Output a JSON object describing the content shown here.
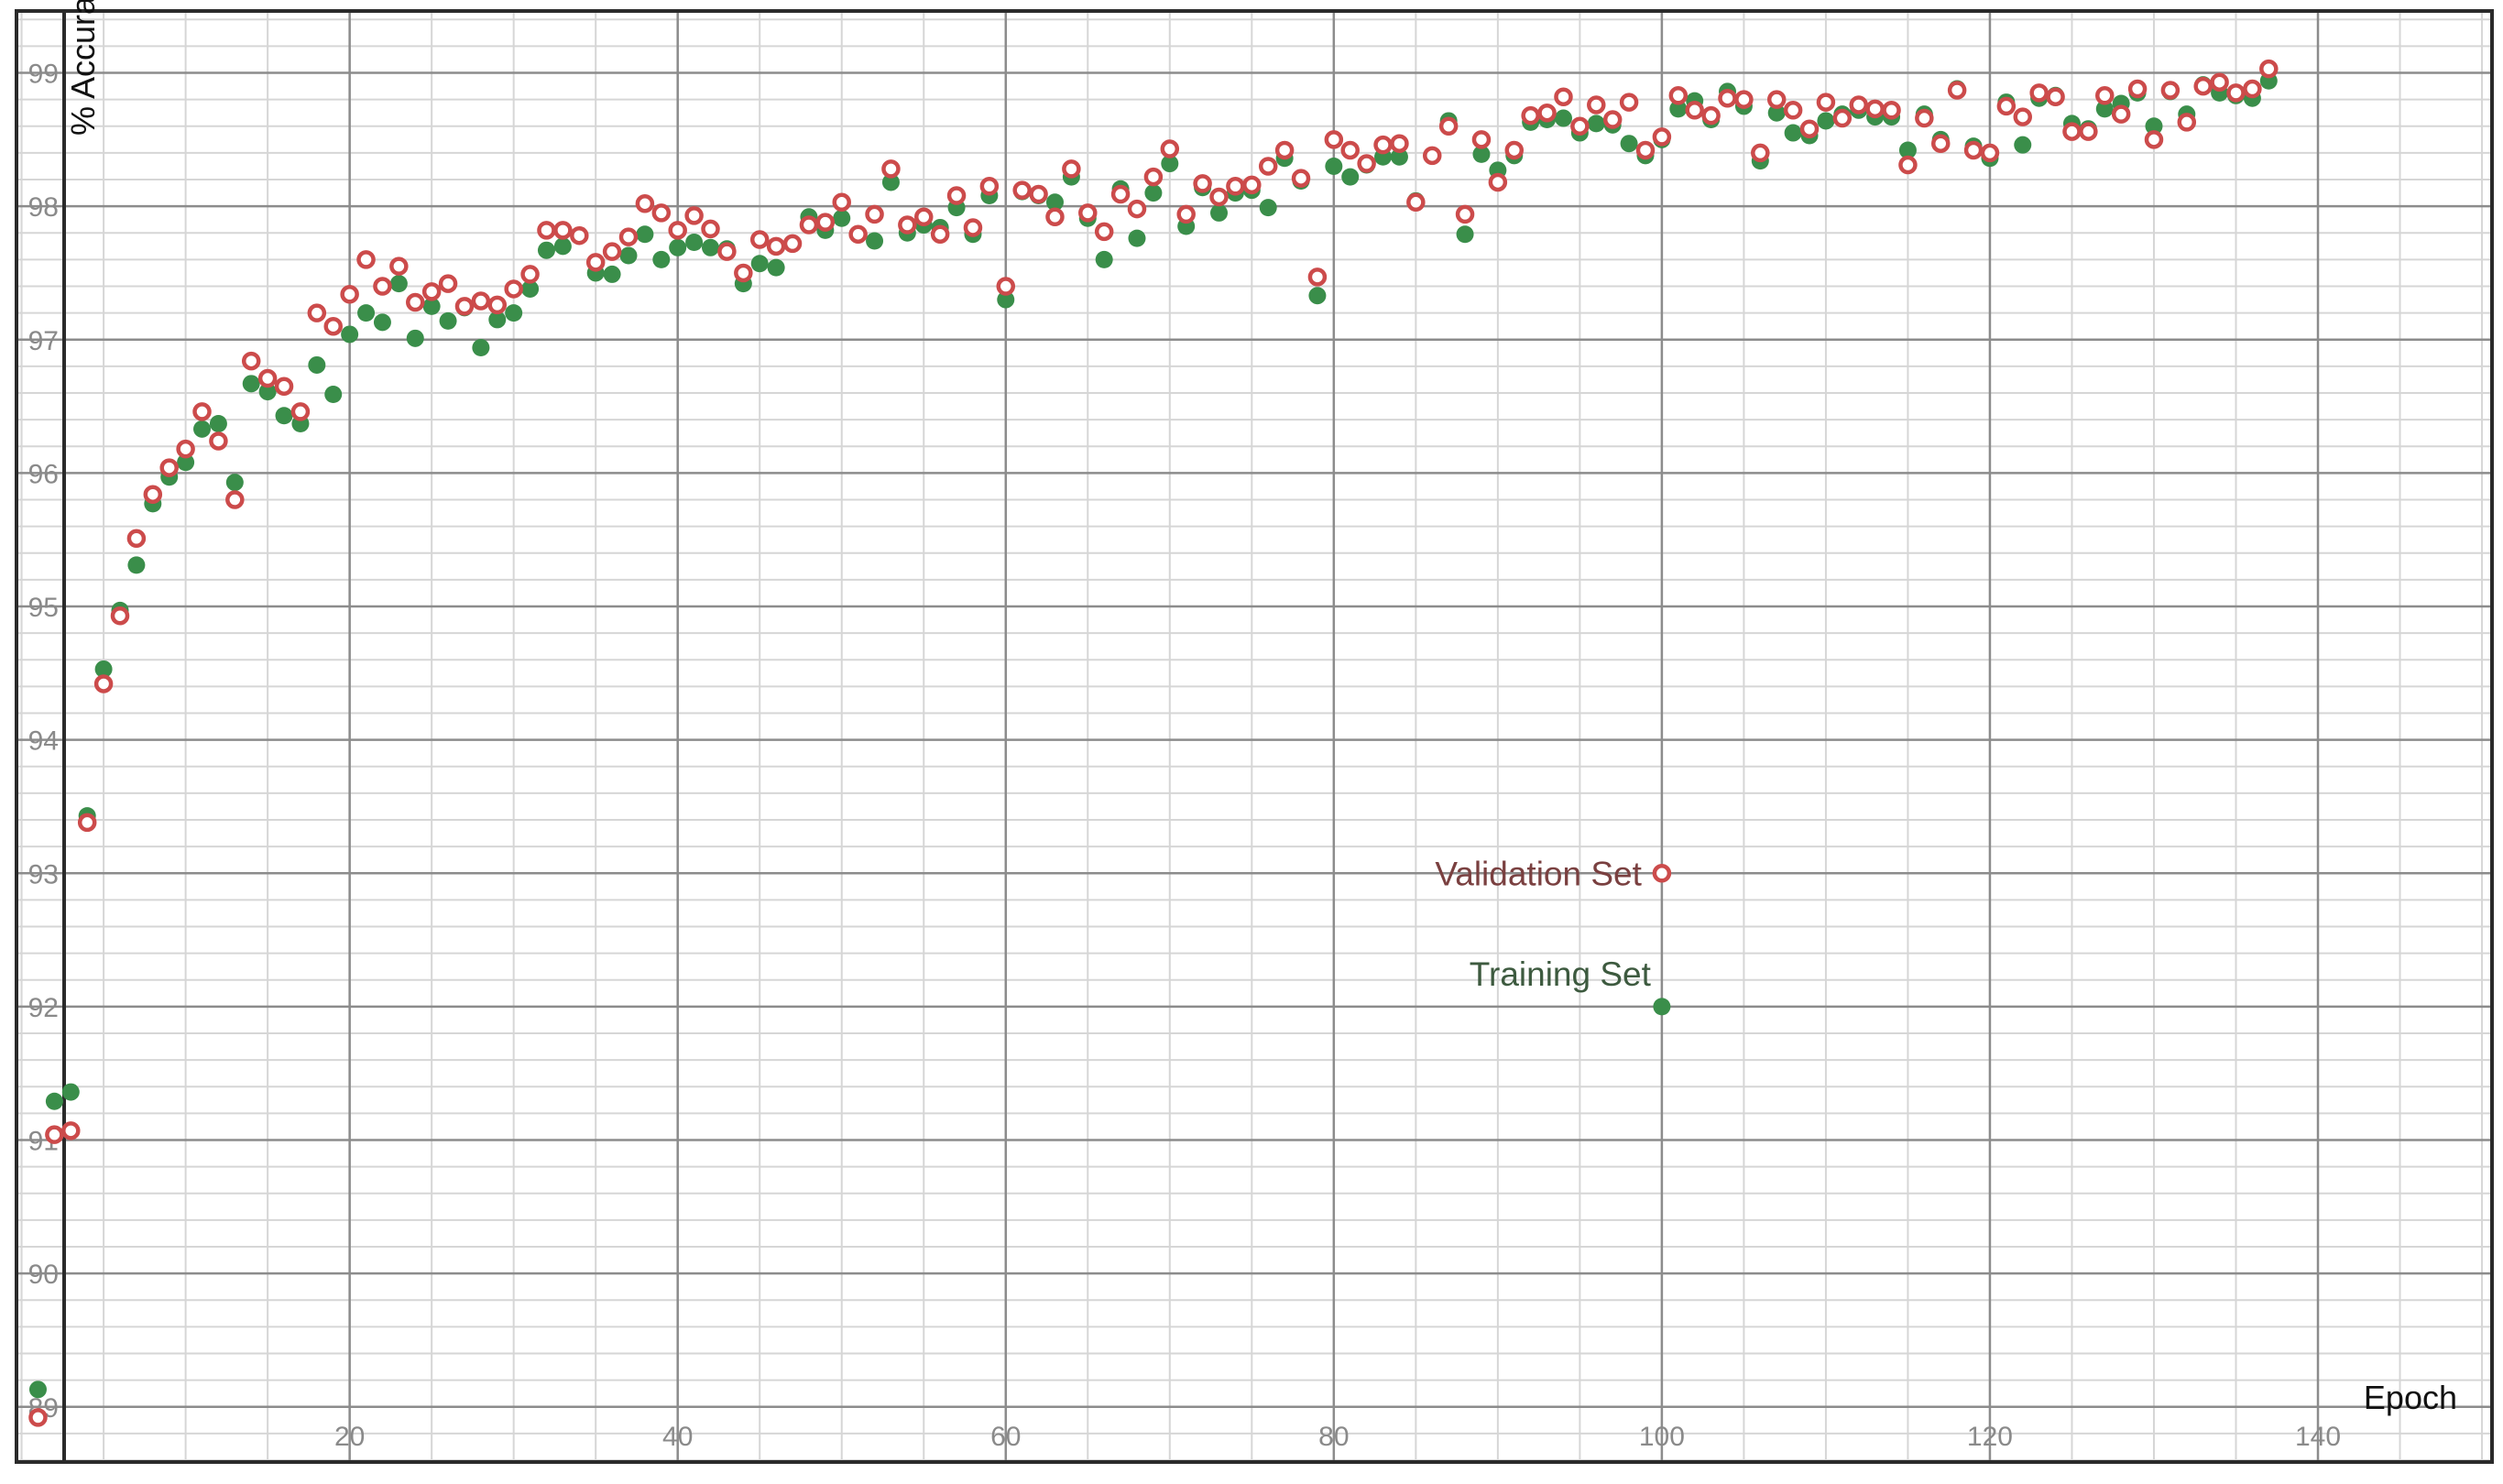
{
  "colors": {
    "validation": "#cc4b4b",
    "training": "#3a8e4a",
    "validation_text": "#7a4040",
    "training_text": "#3d5a3f",
    "grid_major": "#8c8c8c",
    "grid_minor": "#d6d6d6",
    "frame": "#2a2a2a"
  },
  "chart_data": {
    "type": "scatter",
    "xlabel": "Epoch",
    "ylabel": "% Accuracy",
    "xlim": [
      -0.2,
      150.5
    ],
    "ylim": [
      88.6,
      99.45
    ],
    "x_major_ticks": [
      20,
      40,
      60,
      80,
      100,
      120,
      140
    ],
    "x_minor_step": 5,
    "y_major_ticks": [
      89,
      90,
      91,
      92,
      93,
      94,
      95,
      96,
      97,
      98,
      99
    ],
    "y_minor_step": 0.2,
    "grid": true,
    "legend": [
      {
        "name": "Validation Set",
        "series": "validation",
        "marker": "hollow-circle",
        "anchor": [
          100,
          93
        ]
      },
      {
        "name": "Training Set",
        "series": "training",
        "marker": "filled-circle",
        "anchor": [
          100,
          92
        ]
      }
    ],
    "epochs": [
      1,
      2,
      3,
      4,
      5,
      6,
      7,
      8,
      9,
      10,
      11,
      12,
      13,
      14,
      15,
      16,
      17,
      18,
      19,
      20,
      21,
      22,
      23,
      24,
      25,
      26,
      27,
      28,
      29,
      30,
      31,
      32,
      33,
      34,
      35,
      36,
      37,
      38,
      39,
      40,
      41,
      42,
      43,
      44,
      45,
      46,
      47,
      48,
      49,
      50,
      51,
      52,
      53,
      54,
      55,
      56,
      57,
      58,
      59,
      60,
      61,
      62,
      63,
      64,
      65,
      66,
      67,
      68,
      69,
      70,
      71,
      72,
      73,
      74,
      75,
      76,
      77,
      78,
      79,
      80,
      81,
      82,
      83,
      84,
      85,
      86,
      87,
      88,
      89,
      90,
      91,
      92,
      93,
      94,
      95,
      96,
      97,
      98,
      99,
      100,
      101,
      102,
      103,
      104,
      105,
      106,
      107,
      108,
      109,
      110,
      111,
      112,
      113,
      114,
      115,
      116,
      117,
      118,
      119,
      120,
      121,
      122,
      123,
      124,
      125,
      126,
      127,
      128,
      129,
      130,
      131,
      132,
      133,
      134,
      135,
      136,
      137
    ],
    "series": [
      {
        "name": "Validation Set",
        "key": "validation",
        "values": [
          88.92,
          91.04,
          91.07,
          93.38,
          94.42,
          94.93,
          95.51,
          95.84,
          96.04,
          96.18,
          96.46,
          96.24,
          95.8,
          96.84,
          96.71,
          96.65,
          96.46,
          97.2,
          97.1,
          97.34,
          97.6,
          97.4,
          97.55,
          97.28,
          97.36,
          97.42,
          97.25,
          97.29,
          97.26,
          97.38,
          97.49,
          97.82,
          97.82,
          97.78,
          97.58,
          97.66,
          97.77,
          98.02,
          97.95,
          97.82,
          97.93,
          97.83,
          97.66,
          97.5,
          97.75,
          97.7,
          97.72,
          97.86,
          97.88,
          98.03,
          97.79,
          97.94,
          98.28,
          97.86,
          97.92,
          97.79,
          98.08,
          97.84,
          98.15,
          97.4,
          98.12,
          98.09,
          97.92,
          98.28,
          97.95,
          97.81,
          98.09,
          97.98,
          98.22,
          98.43,
          97.94,
          98.17,
          98.07,
          98.15,
          98.16,
          98.3,
          98.42,
          98.21,
          97.47,
          98.5,
          98.42,
          98.32,
          98.46,
          98.47,
          98.03,
          98.38,
          98.6,
          97.94,
          98.5,
          98.18,
          98.42,
          98.68,
          98.7,
          98.82,
          98.6,
          98.76,
          98.65,
          98.78,
          98.42,
          98.52,
          98.83,
          98.72,
          98.68,
          98.81,
          98.8,
          98.4,
          98.8,
          98.72,
          98.58,
          98.78,
          98.66,
          98.76,
          98.73,
          98.72,
          98.31,
          98.66,
          98.47,
          98.87,
          98.42,
          98.4,
          98.75,
          98.67,
          98.85,
          98.82,
          98.56,
          98.56,
          98.83,
          98.69,
          98.88,
          98.5,
          98.87,
          98.63,
          98.9,
          98.93,
          98.85,
          98.88,
          99.03
        ]
      },
      {
        "name": "Training Set",
        "key": "training",
        "values": [
          89.13,
          91.29,
          91.36,
          93.43,
          94.53,
          94.97,
          95.31,
          95.77,
          95.97,
          96.08,
          96.33,
          96.37,
          95.93,
          96.67,
          96.61,
          96.43,
          96.37,
          96.81,
          96.59,
          97.04,
          97.2,
          97.13,
          97.42,
          97.01,
          97.25,
          97.14,
          97.24,
          96.94,
          97.15,
          97.2,
          97.38,
          97.67,
          97.7,
          97.78,
          97.5,
          97.49,
          97.63,
          97.79,
          97.6,
          97.69,
          97.73,
          97.69,
          97.68,
          97.42,
          97.57,
          97.54,
          97.72,
          97.92,
          97.82,
          97.91,
          97.79,
          97.74,
          98.18,
          97.8,
          97.86,
          97.84,
          97.99,
          97.79,
          98.08,
          97.3,
          98.11,
          98.08,
          98.03,
          98.22,
          97.91,
          97.6,
          98.13,
          97.76,
          98.1,
          98.32,
          97.85,
          98.14,
          97.95,
          98.1,
          98.12,
          97.99,
          98.36,
          98.19,
          97.33,
          98.3,
          98.22,
          98.31,
          98.37,
          98.37,
          98.04,
          98.38,
          98.64,
          97.79,
          98.39,
          98.27,
          98.38,
          98.63,
          98.65,
          98.66,
          98.55,
          98.62,
          98.61,
          98.47,
          98.38,
          98.5,
          98.73,
          98.79,
          98.65,
          98.86,
          98.75,
          98.34,
          98.7,
          98.55,
          98.53,
          98.64,
          98.69,
          98.72,
          98.67,
          98.67,
          98.42,
          98.69,
          98.5,
          98.88,
          98.45,
          98.36,
          98.78,
          98.46,
          98.81,
          98.83,
          98.62,
          98.58,
          98.73,
          98.77,
          98.85,
          98.6,
          98.86,
          98.69,
          98.91,
          98.85,
          98.83,
          98.81,
          98.94
        ]
      }
    ]
  }
}
